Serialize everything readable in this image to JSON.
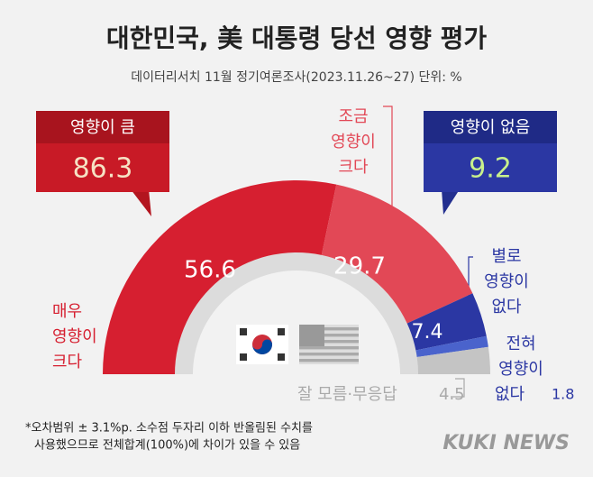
{
  "chart_data": {
    "type": "donut",
    "title": "대한민국, 美 대통령 당선 영향 평가",
    "subtitle": "데이터리서치 11월 정기여론조사(2023.11.26~27) 단위: %",
    "categories": [
      [
        "매우",
        "영향이",
        "크다"
      ],
      [
        "조금",
        "영향이",
        "크다"
      ],
      [
        "별로",
        "영향이",
        "없다"
      ],
      [
        "전혀",
        "영향이",
        "없다"
      ],
      [
        "잘 모름·무응답"
      ]
    ],
    "values": [
      56.6,
      29.7,
      7.4,
      1.8,
      4.5
    ],
    "colors": [
      "#d61f30",
      "#e24856",
      "#2b37a3",
      "#4a63cc",
      "#c4c4c4"
    ],
    "summaries": [
      {
        "label": "영향이 큼",
        "value": 86.3
      },
      {
        "label": "영향이 없음",
        "value": 9.2
      }
    ],
    "footnote": [
      "*오차범위 ± 3.1%p. 소수점 두자리 이하 반올림된 수치를",
      "사용했으므로 전체합계(100%)에 차이가 있을 수 있음"
    ],
    "source": "KUKI NEWS"
  }
}
